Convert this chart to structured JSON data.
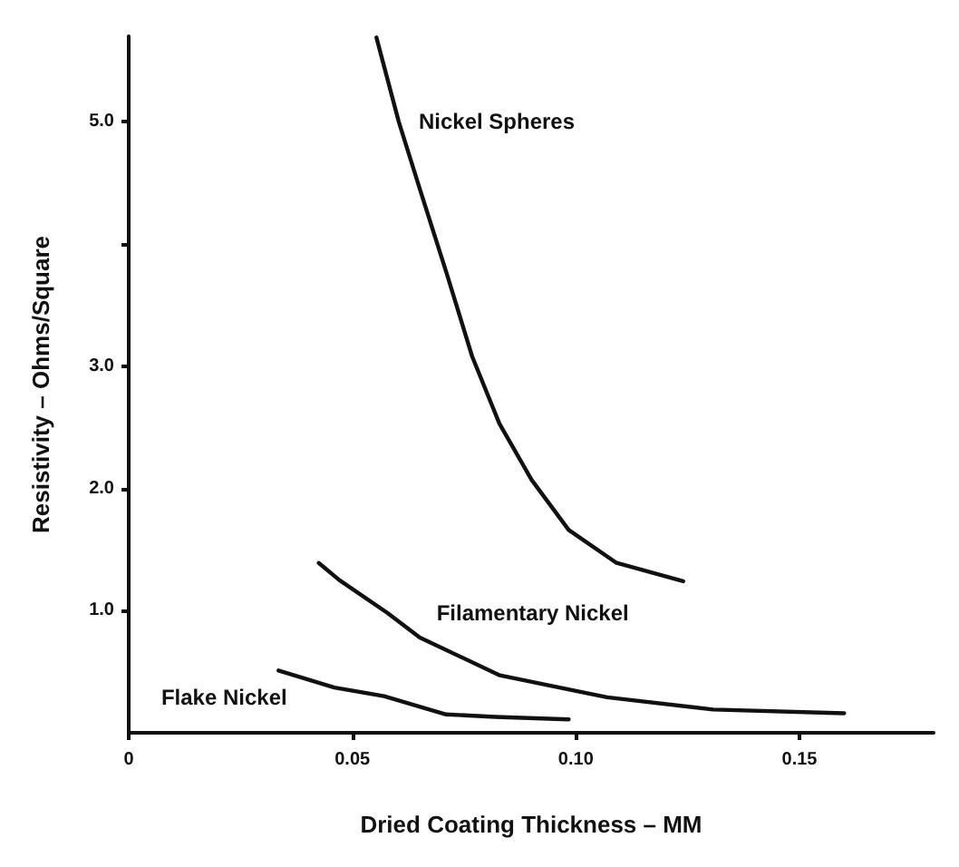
{
  "chart_data": {
    "type": "line",
    "xlabel": "Dried Coating Thickness – MM",
    "ylabel": "Resistivity – Ohms/Square",
    "xlim": [
      0,
      0.18
    ],
    "xticks": [
      {
        "value": 0,
        "label": "0"
      },
      0.05,
      {
        "value": 0.1,
        "label": "0.10"
      },
      0.15
    ],
    "ylim": [
      0,
      5.7
    ],
    "yticks": [
      {
        "value": 1,
        "label": "1.0"
      },
      {
        "value": 2,
        "label": "2.0"
      },
      {
        "value": 3,
        "label": "3.0"
      },
      {
        "value": 4,
        "label": null
      },
      {
        "value": 5,
        "label": "5.0"
      }
    ],
    "grid": false,
    "legend": false,
    "marker": "none",
    "line_style": "solid",
    "series": [
      {
        "name": "Nickel Spheres",
        "color": "#111111",
        "x": [
          0.0554,
          0.0604,
          0.0651,
          0.0711,
          0.0768,
          0.0829,
          0.0901,
          0.0984,
          0.1091,
          0.124
        ],
        "values": [
          5.69,
          5.0,
          4.45,
          3.76,
          3.08,
          2.53,
          2.07,
          1.66,
          1.39,
          1.24
        ]
      },
      {
        "name": "Filamentary Nickel",
        "color": "#111111",
        "x": [
          0.0425,
          0.0471,
          0.0579,
          0.0651,
          0.083,
          0.107,
          0.1307,
          0.16
        ],
        "values": [
          1.39,
          1.25,
          0.98,
          0.78,
          0.47,
          0.29,
          0.19,
          0.16
        ]
      },
      {
        "name": "Flake Nickel",
        "color": "#111111",
        "x": [
          0.0335,
          0.046,
          0.0571,
          0.071,
          0.082,
          0.0984
        ],
        "values": [
          0.51,
          0.37,
          0.3,
          0.15,
          0.13,
          0.11
        ]
      }
    ]
  }
}
